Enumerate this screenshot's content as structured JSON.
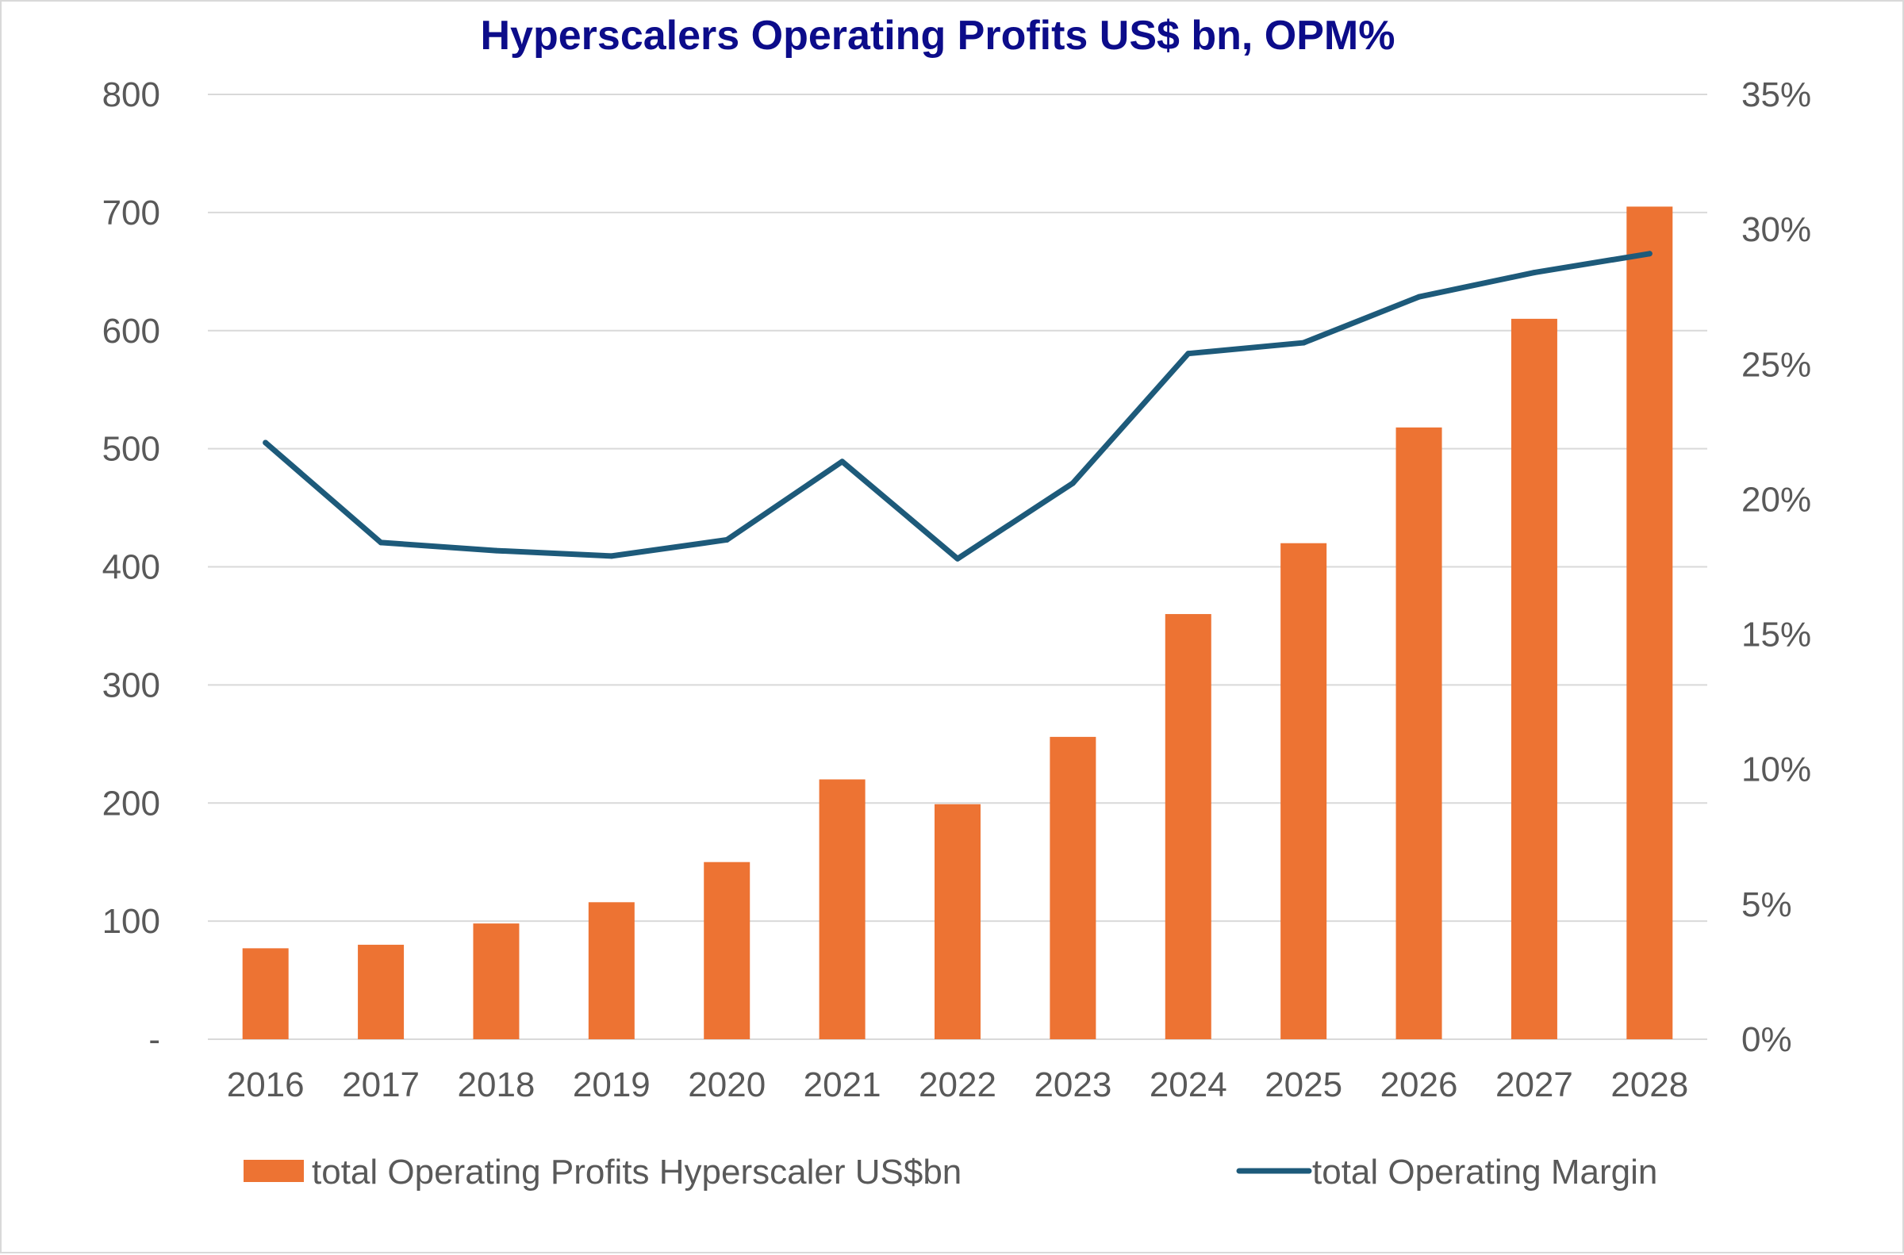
{
  "chart_data": {
    "type": "bar",
    "title": "Hyperscalers Operating Profits US$ bn, OPM%",
    "categories": [
      "2016",
      "2017",
      "2018",
      "2019",
      "2020",
      "2021",
      "2022",
      "2023",
      "2024",
      "2025",
      "2026",
      "2027",
      "2028"
    ],
    "series": [
      {
        "name": "total Operating Profits Hyperscaler US$bn",
        "type": "bar",
        "axis": "left",
        "values": [
          77,
          80,
          98,
          116,
          150,
          220,
          199,
          256,
          360,
          420,
          518,
          610,
          705
        ]
      },
      {
        "name": "total Operating Margin",
        "type": "line",
        "axis": "right",
        "values": [
          22.1,
          18.4,
          18.1,
          17.9,
          18.5,
          21.4,
          17.8,
          20.6,
          25.4,
          25.8,
          27.5,
          28.4,
          29.1
        ]
      }
    ],
    "y_left": {
      "ylim": [
        0,
        800
      ],
      "ticks": [
        0,
        100,
        200,
        300,
        400,
        500,
        600,
        700,
        800
      ],
      "tick_labels": [
        "-",
        "100",
        "200",
        "300",
        "400",
        "500",
        "600",
        "700",
        "800"
      ]
    },
    "y_right": {
      "ylim": [
        0,
        35
      ],
      "ticks": [
        0,
        5,
        10,
        15,
        20,
        25,
        30,
        35
      ],
      "tick_labels": [
        "0%",
        "5%",
        "10%",
        "15%",
        "20%",
        "25%",
        "30%",
        "35%"
      ]
    },
    "grid": true,
    "legend_position": "bottom",
    "colors": {
      "bar": "#ed7333",
      "line": "#1d5a7a",
      "grid": "#d9d9d9",
      "title": "#0c0c8a",
      "text": "#595959"
    }
  }
}
